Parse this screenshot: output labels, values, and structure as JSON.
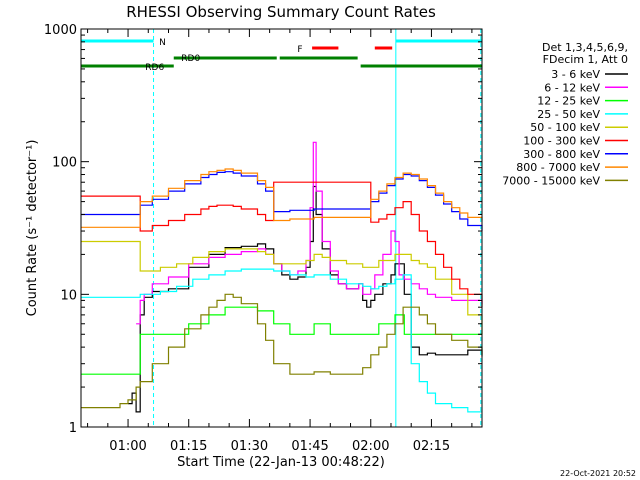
{
  "chart_data": {
    "type": "line",
    "title": "RHESSI Observing Summary Count Rates",
    "xlabel": "Start Time (22-Jan-13 00:48:22)",
    "ylabel": "Count Rate (s⁻¹ detector⁻¹)",
    "footer": "22-Oct-2021 20:52",
    "x_unit": "minutes after 00:00 UT, 22-Jan-13",
    "xlim": [
      48.37,
      147.5
    ],
    "ylim": [
      1,
      1000
    ],
    "y_scale": "log",
    "x_ticks": [
      {
        "value": 60,
        "label": "01:00"
      },
      {
        "value": 75,
        "label": "01:15"
      },
      {
        "value": 90,
        "label": "01:30"
      },
      {
        "value": 105,
        "label": "01:45"
      },
      {
        "value": 120,
        "label": "02:00"
      },
      {
        "value": 135,
        "label": "02:15"
      }
    ],
    "y_ticks": [
      {
        "value": 1,
        "label": "1"
      },
      {
        "value": 10,
        "label": "10"
      },
      {
        "value": 100,
        "label": "100"
      },
      {
        "value": 1000,
        "label": "1000"
      }
    ],
    "legend": {
      "position": "right",
      "header": [
        "Det 1,3,4,5,6,9,",
        "FDecim 1, Att 0"
      ]
    },
    "series": [
      {
        "name": "3 - 6 keV",
        "color": "#000000",
        "x": [
          48.4,
          56,
          58,
          60,
          61,
          62,
          63,
          64,
          66,
          70,
          75,
          80,
          84,
          88,
          92,
          94,
          96,
          98,
          100,
          102,
          104,
          105,
          105.8,
          106.5,
          108,
          110,
          112,
          114,
          116,
          117,
          118,
          119,
          120,
          121,
          123,
          125,
          126,
          127,
          128.3,
          130,
          132,
          134,
          136,
          140,
          144,
          147.5
        ],
        "y": [
          null,
          null,
          null,
          1.5,
          1.8,
          1.3,
          7,
          9.5,
          10.5,
          11,
          16,
          20,
          22.5,
          23,
          24,
          22,
          17,
          14,
          13,
          13.5,
          16,
          25,
          65,
          40,
          22,
          14,
          12,
          11,
          11,
          12,
          9,
          8,
          9,
          10,
          12,
          14,
          17,
          17,
          10,
          4,
          3.5,
          3.6,
          3.5,
          3.5,
          3.8,
          3.4
        ]
      },
      {
        "name": "6 - 12 keV",
        "color": "#ff00ff",
        "x": [
          48.4,
          56,
          58,
          60,
          61,
          62,
          63,
          64,
          66,
          70,
          75,
          80,
          84,
          88,
          92,
          94,
          96,
          98,
          100,
          102,
          104,
          105,
          105.8,
          106.5,
          108,
          110,
          112,
          114,
          116,
          117,
          118,
          119,
          120,
          121,
          123,
          125,
          126,
          127,
          128.3,
          130,
          132,
          134,
          136,
          140,
          144,
          147.5
        ],
        "y": [
          null,
          null,
          null,
          null,
          null,
          6,
          9,
          10,
          12,
          13.5,
          17,
          19,
          20,
          21,
          22,
          20,
          17,
          15,
          14,
          15,
          18,
          45,
          140,
          60,
          25,
          15,
          12,
          11,
          11,
          12,
          10,
          10,
          11,
          14,
          20,
          30,
          25,
          14,
          13,
          12,
          11,
          10,
          9.5,
          9,
          9,
          8.5
        ]
      },
      {
        "name": "12 - 25 keV",
        "color": "#00ff00",
        "x": [
          48.4,
          55,
          60,
          62,
          63,
          70,
          75,
          80,
          84,
          88,
          92,
          96,
          100,
          104,
          106,
          110,
          114,
          118,
          120,
          122,
          126,
          127,
          128.3,
          130,
          134,
          140,
          147.5
        ],
        "y": [
          2.5,
          2.5,
          2.5,
          2.5,
          5,
          5,
          6,
          7,
          8,
          8,
          7.5,
          6,
          5,
          5,
          6,
          5,
          5,
          5,
          5,
          6,
          7,
          7,
          5,
          5,
          5,
          5,
          5
        ]
      },
      {
        "name": "25 - 50 keV",
        "color": "#00ffff",
        "x": [
          48.4,
          52,
          56,
          60,
          62,
          63,
          68,
          72,
          76,
          80,
          84,
          88,
          92,
          96,
          100,
          104,
          106,
          110,
          114,
          118,
          120,
          122,
          124,
          126,
          128,
          128.3,
          130,
          132,
          134,
          136,
          140,
          144,
          147.5
        ],
        "y": [
          9.5,
          9.5,
          9.5,
          9.5,
          9.5,
          10,
          10.5,
          11.5,
          13,
          14,
          15,
          15.5,
          15.5,
          15,
          14,
          13.5,
          14,
          13,
          12,
          11.5,
          11,
          11.5,
          12,
          13,
          14,
          14,
          3,
          2.2,
          1.8,
          1.5,
          1.4,
          1.3,
          1.3
        ]
      },
      {
        "name": "50 - 100 keV",
        "color": "#cccc00",
        "x": [
          48.4,
          52,
          56,
          60,
          62,
          63,
          68,
          72,
          76,
          80,
          84,
          88,
          92,
          94,
          96,
          100,
          104,
          106,
          108,
          110,
          114,
          118,
          120,
          122,
          126,
          128,
          128.3,
          130,
          132,
          134,
          136,
          140,
          144,
          147.5
        ],
        "y": [
          25,
          25,
          25,
          25,
          25,
          15,
          16,
          17,
          19,
          21,
          22,
          22,
          21,
          20,
          17,
          17,
          18,
          20,
          19,
          18,
          17,
          16,
          16,
          18,
          20,
          20,
          20,
          18,
          17,
          16,
          13,
          10,
          7,
          5
        ]
      },
      {
        "name": "100 - 300 keV",
        "color": "#ff0000",
        "x": [
          48.4,
          52,
          56,
          60,
          62,
          63,
          66,
          70,
          74,
          78,
          80,
          82,
          84,
          86,
          88,
          92,
          94,
          96,
          100,
          104,
          106,
          110,
          114,
          118,
          120,
          122,
          124,
          126,
          128,
          128.3,
          130,
          132,
          134,
          136,
          138,
          140,
          142,
          144,
          147.5
        ],
        "y": [
          55,
          55,
          55,
          55,
          55,
          30,
          33,
          36,
          40,
          44,
          46,
          47,
          47,
          46,
          44,
          40,
          36,
          70,
          70,
          70,
          70,
          70,
          70,
          70,
          35,
          37,
          40,
          45,
          50,
          50,
          40,
          30,
          25,
          20,
          16,
          13,
          11,
          10,
          8
        ]
      },
      {
        "name": "300 - 800 keV",
        "color": "#0000ff",
        "x": [
          48.4,
          52,
          56,
          60,
          62,
          63,
          66,
          70,
          74,
          78,
          80,
          82,
          84,
          86,
          88,
          92,
          94,
          96,
          100,
          104,
          106,
          110,
          114,
          118,
          120,
          122,
          124,
          126,
          128,
          128.3,
          130,
          132,
          134,
          136,
          138,
          140,
          142,
          144,
          147.5
        ],
        "y": [
          40,
          40,
          40,
          40,
          40,
          47,
          52,
          60,
          68,
          76,
          80,
          83,
          84,
          82,
          78,
          68,
          60,
          42,
          43,
          43,
          44,
          44,
          44,
          44,
          50,
          58,
          66,
          74,
          80,
          80,
          78,
          72,
          64,
          56,
          48,
          42,
          37,
          33,
          30
        ]
      },
      {
        "name": "800 - 7000 keV",
        "color": "#ff8800",
        "x": [
          48.4,
          52,
          56,
          60,
          62,
          63,
          66,
          70,
          74,
          78,
          80,
          82,
          84,
          86,
          88,
          92,
          94,
          96,
          100,
          104,
          106,
          110,
          114,
          118,
          120,
          122,
          124,
          126,
          128,
          128.3,
          130,
          132,
          134,
          136,
          138,
          140,
          142,
          144,
          147.5
        ],
        "y": [
          32,
          32,
          32,
          32,
          32,
          50,
          55,
          63,
          72,
          80,
          84,
          86,
          88,
          86,
          82,
          72,
          64,
          36,
          37,
          37,
          38,
          38,
          38,
          38,
          52,
          60,
          68,
          76,
          82,
          82,
          80,
          74,
          66,
          58,
          50,
          45,
          41,
          38,
          36
        ]
      },
      {
        "name": "7000 - 15000 keV",
        "color": "#808000",
        "x": [
          48.4,
          55,
          58,
          60,
          62,
          63,
          66,
          70,
          74,
          78,
          80,
          82,
          84,
          86,
          88,
          92,
          94,
          96,
          100,
          104,
          106,
          110,
          114,
          118,
          120,
          122,
          124,
          126,
          128,
          128.3,
          130,
          132,
          134,
          136,
          140,
          144,
          147.5
        ],
        "y": [
          1.4,
          1.4,
          1.5,
          1.6,
          2,
          2.2,
          3,
          4,
          5.5,
          7,
          8,
          9,
          10,
          9.5,
          8.5,
          6,
          4.5,
          3,
          2.5,
          2.5,
          2.6,
          2.5,
          2.5,
          2.8,
          3.5,
          4,
          5,
          6,
          8,
          8,
          8,
          7,
          6,
          5,
          4.5,
          4,
          3.5
        ]
      }
    ],
    "state_bars": [
      {
        "label": "N",
        "label_x": 68.5,
        "color": "#00ffff",
        "row": "top",
        "segments": [
          [
            48.4,
            66.3
          ],
          [
            126.2,
            147.5
          ]
        ]
      },
      {
        "label": "F",
        "label_x": 102.5,
        "color": "#ff0000",
        "row": "flare",
        "segments": [
          [
            105.5,
            112
          ],
          [
            121,
            125.3
          ]
        ]
      },
      {
        "label": "RD0",
        "label_x": 75.5,
        "color": "#008000",
        "row": "rd-upper",
        "segments": [
          [
            71.3,
            97.5
          ],
          [
            97.5,
            117.5
          ]
        ]
      },
      {
        "label": "RD6",
        "label_x": 66.6,
        "color": "#008000",
        "row": "rd-lower",
        "segments": [
          [
            48.4,
            71.3
          ],
          [
            117.5,
            147.5
          ]
        ]
      }
    ],
    "vlines": [
      {
        "x": 48.37,
        "color": "#00ffff",
        "style": "solid"
      },
      {
        "x": 66.3,
        "color": "#00ffff",
        "style": "dashed"
      },
      {
        "x": 126.2,
        "color": "#00ffff",
        "style": "solid"
      },
      {
        "x": 147.2,
        "color": "#00ffff",
        "style": "dashed"
      }
    ],
    "grid": false
  }
}
